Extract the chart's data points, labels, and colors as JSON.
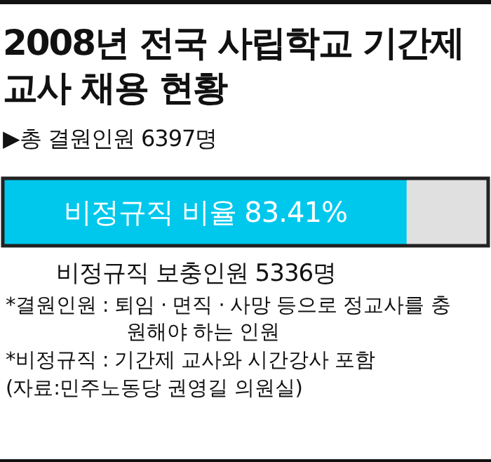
{
  "chart_data": {
    "type": "bar",
    "orientation": "horizontal",
    "stacked": true,
    "xlim": [
      0,
      100
    ],
    "title": "2008년 전국 사립학교 기간제 교사 채용 현황",
    "subtitle": "▶총 결원인원 6397명",
    "categories": [
      null
    ],
    "series": [
      {
        "color": "#00c8ec",
        "values": [
          83.41
        ],
        "value_labels": [
          "비정규직 비율 83.41%"
        ]
      },
      {
        "color": "#e0e0e0",
        "values": [
          16.59
        ]
      }
    ],
    "annotations": [
      "비정규직 보충인원 5336명",
      "*결원인원 : 퇴임 · 면직 · 사망 등으로 정교사를 충원해야 하는 인원",
      "*비정규직 : 기간제 교사와 시간강사 포함",
      "(자료:민주노동당 권영길 의원실)"
    ]
  }
}
